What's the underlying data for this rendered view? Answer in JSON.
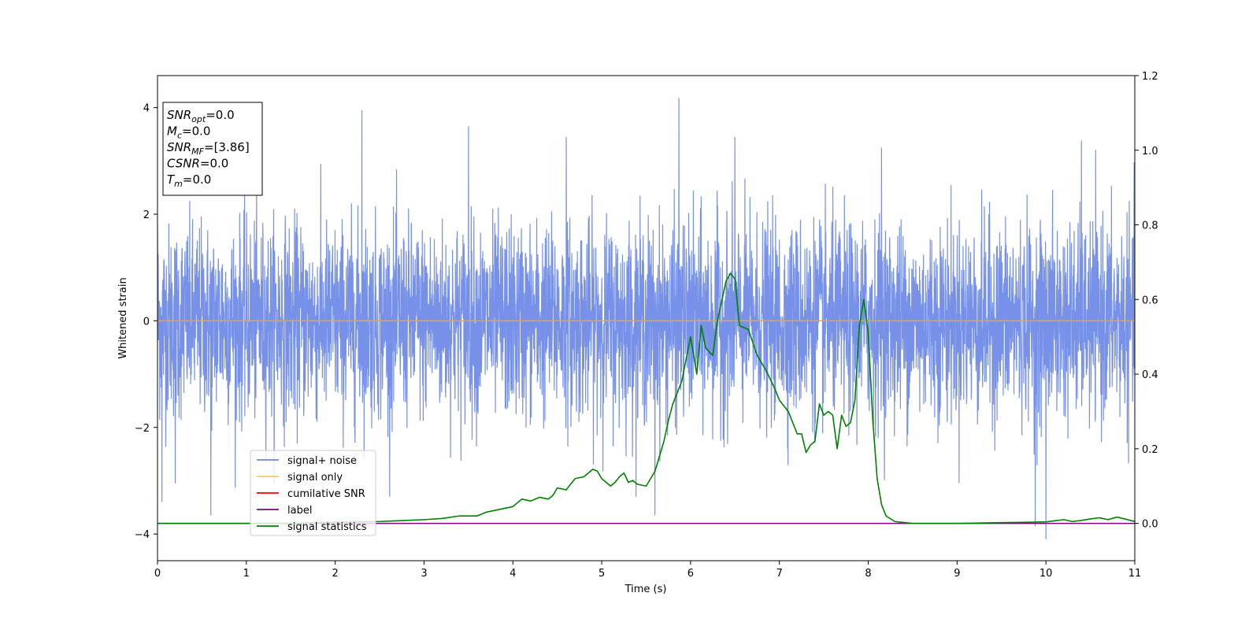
{
  "chart_data": {
    "type": "line",
    "xlabel": "Time (s)",
    "ylabel": "Whitened strain",
    "xlim": [
      0,
      11
    ],
    "ylim": [
      -4.5,
      4.6
    ],
    "y2lim": [
      -0.1,
      1.2
    ],
    "x_ticks": [
      "0",
      "1",
      "2",
      "3",
      "4",
      "5",
      "6",
      "7",
      "8",
      "9",
      "10",
      "11"
    ],
    "y_ticks": [
      "4",
      "2",
      "0",
      "−2",
      "−4"
    ],
    "y2_ticks": [
      "1.2",
      "1.0",
      "0.8",
      "0.6",
      "0.4",
      "0.2",
      "0.0"
    ],
    "grid": false,
    "legend_position": "lower-left",
    "colors": {
      "noise": "#6b88e6",
      "signal_only": "#ffa500",
      "cumulative_snr": "#ff0000",
      "label": "#800080",
      "signal_statistics": "#008000"
    },
    "series": [
      {
        "name": "signal+ noise",
        "axis": "left",
        "style": "noise",
        "description_values": {
          "mean": 0.0,
          "std": 0.9,
          "max": 4.18,
          "min": -4.1
        },
        "notable_peaks": [
          {
            "x": 0.0,
            "y": 1.8
          },
          {
            "x": 0.05,
            "y": -3.4
          },
          {
            "x": 0.2,
            "y": -3.05
          },
          {
            "x": 0.6,
            "y": -3.65
          },
          {
            "x": 2.3,
            "y": 3.95
          },
          {
            "x": 3.5,
            "y": 3.65
          },
          {
            "x": 4.6,
            "y": 3.45
          },
          {
            "x": 5.6,
            "y": -3.65
          },
          {
            "x": 5.87,
            "y": 4.18
          },
          {
            "x": 6.5,
            "y": 3.45
          },
          {
            "x": 8.15,
            "y": 3.25
          },
          {
            "x": 9.88,
            "y": -3.85
          },
          {
            "x": 10.0,
            "y": -4.1
          },
          {
            "x": 10.4,
            "y": 3.38
          }
        ]
      },
      {
        "name": "signal only",
        "axis": "left",
        "x": [
          0,
          11
        ],
        "y": [
          0,
          0
        ]
      },
      {
        "name": "cumilative SNR",
        "axis": "right",
        "x": [],
        "y": []
      },
      {
        "name": "label",
        "axis": "right",
        "x": [
          0,
          11
        ],
        "y": [
          0,
          0
        ]
      },
      {
        "name": "signal statistics",
        "axis": "right",
        "x": [
          0,
          0.5,
          1.0,
          1.5,
          2.0,
          2.5,
          2.7,
          3.0,
          3.2,
          3.4,
          3.6,
          3.7,
          3.8,
          3.9,
          4.0,
          4.05,
          4.1,
          4.2,
          4.3,
          4.4,
          4.45,
          4.5,
          4.6,
          4.7,
          4.8,
          4.85,
          4.9,
          4.95,
          5.0,
          5.1,
          5.15,
          5.2,
          5.25,
          5.3,
          5.35,
          5.4,
          5.5,
          5.6,
          5.7,
          5.75,
          5.8,
          5.9,
          6.0,
          6.07,
          6.12,
          6.17,
          6.25,
          6.3,
          6.4,
          6.45,
          6.5,
          6.55,
          6.65,
          6.75,
          6.85,
          6.95,
          7.0,
          7.1,
          7.2,
          7.25,
          7.3,
          7.35,
          7.4,
          7.45,
          7.5,
          7.55,
          7.6,
          7.65,
          7.7,
          7.75,
          7.8,
          7.85,
          7.9,
          7.95,
          8.0,
          8.05,
          8.1,
          8.15,
          8.2,
          8.3,
          8.5,
          9.0,
          9.5,
          9.8,
          10.0,
          10.1,
          10.2,
          10.3,
          10.4,
          10.5,
          10.6,
          10.7,
          10.8,
          11.0
        ],
        "y": [
          0.0,
          0.0,
          0.0,
          0.0,
          0.003,
          0.005,
          0.007,
          0.01,
          0.013,
          0.02,
          0.02,
          0.03,
          0.035,
          0.04,
          0.045,
          0.055,
          0.065,
          0.06,
          0.07,
          0.065,
          0.075,
          0.095,
          0.09,
          0.12,
          0.125,
          0.135,
          0.145,
          0.14,
          0.12,
          0.1,
          0.11,
          0.125,
          0.135,
          0.11,
          0.115,
          0.105,
          0.1,
          0.14,
          0.22,
          0.275,
          0.32,
          0.38,
          0.5,
          0.4,
          0.53,
          0.47,
          0.45,
          0.54,
          0.65,
          0.67,
          0.655,
          0.53,
          0.52,
          0.45,
          0.41,
          0.36,
          0.33,
          0.3,
          0.24,
          0.24,
          0.19,
          0.21,
          0.22,
          0.32,
          0.29,
          0.3,
          0.29,
          0.2,
          0.29,
          0.26,
          0.27,
          0.33,
          0.53,
          0.6,
          0.51,
          0.28,
          0.12,
          0.05,
          0.02,
          0.005,
          0.0,
          0.0,
          0.002,
          0.003,
          0.004,
          0.007,
          0.01,
          0.005,
          0.008,
          0.012,
          0.015,
          0.01,
          0.017,
          0.005
        ]
      }
    ],
    "annotation_box": {
      "lines": [
        {
          "base": "SNR",
          "sub": "opt",
          "value": "=0.0"
        },
        {
          "base": "M",
          "sub": "c",
          "value": "=0.0"
        },
        {
          "base": "SNR",
          "sub": "MF",
          "value": "=[3.86]"
        },
        {
          "base": "CSNR",
          "sub": "",
          "value": "=0.0"
        },
        {
          "base": "T",
          "sub": "m",
          "value": "=0.0"
        }
      ]
    }
  }
}
